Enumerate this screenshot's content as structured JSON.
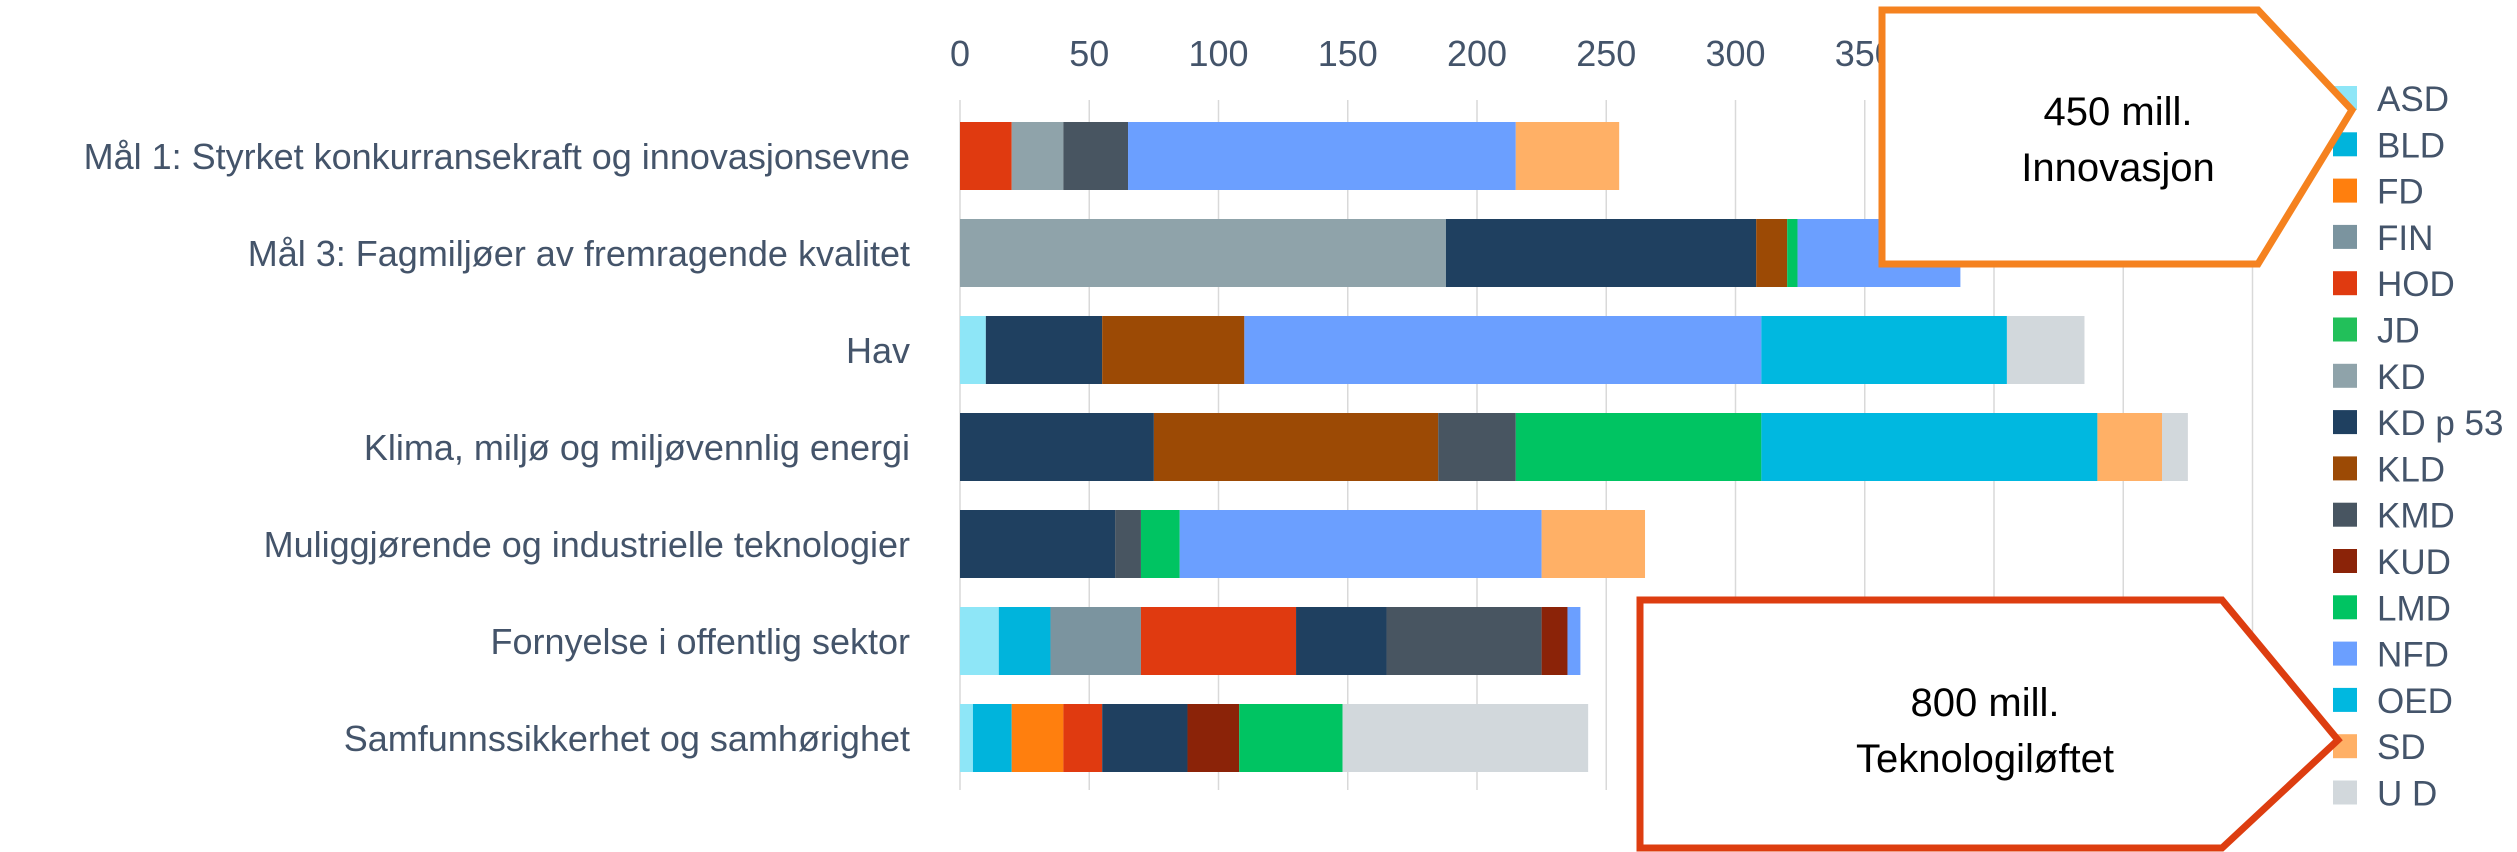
{
  "chart_data": {
    "type": "bar",
    "orientation": "horizontal",
    "stacked": true,
    "xlim": [
      0,
      500
    ],
    "x_ticks": [
      "0",
      "50",
      "100",
      "150",
      "200",
      "250",
      "300",
      "350"
    ],
    "grid": true,
    "legend_position": "right",
    "categories": [
      "Mål 1: Styrket konkurransekraft og innovasjonsevne",
      "Mål 3: Fagmiljøer av fremragende kvalitet",
      "Hav",
      "Klima, miljø og miljøvennlig energi",
      "Muliggjørende og industrielle teknologier",
      "Fornyelse i offentlig sektor",
      "Samfunnssikkerhet og samhørighet"
    ],
    "series": [
      {
        "name": "ASD",
        "color": "#8ee6f7",
        "values": [
          0,
          0,
          10,
          0,
          0,
          15,
          5
        ]
      },
      {
        "name": "BLD",
        "color": "#00b4dc",
        "values": [
          0,
          0,
          0,
          0,
          0,
          20,
          15
        ]
      },
      {
        "name": "FD",
        "color": "#ff7f0e",
        "values": [
          0,
          0,
          0,
          0,
          0,
          0,
          20
        ]
      },
      {
        "name": "FIN",
        "color": "#7b949f",
        "values": [
          0,
          0,
          0,
          0,
          0,
          35,
          0
        ]
      },
      {
        "name": "HOD",
        "color": "#e03a10",
        "values": [
          20,
          0,
          0,
          0,
          0,
          60,
          15
        ]
      },
      {
        "name": "JD",
        "color": "#22c05a",
        "values": [
          0,
          0,
          0,
          0,
          0,
          0,
          0
        ]
      },
      {
        "name": "KD",
        "color": "#8fa3aa",
        "values": [
          20,
          188,
          0,
          0,
          0,
          0,
          0
        ]
      },
      {
        "name": "KD p 53",
        "color": "#1f4060",
        "values": [
          0,
          120,
          45,
          75,
          60,
          35,
          33
        ]
      },
      {
        "name": "KLD",
        "color": "#9c4a05",
        "values": [
          0,
          12,
          55,
          110,
          0,
          0,
          0
        ]
      },
      {
        "name": "KMD",
        "color": "#485561",
        "values": [
          25,
          0,
          0,
          30,
          10,
          60,
          0
        ]
      },
      {
        "name": "KUD",
        "color": "#8b2308",
        "values": [
          0,
          0,
          0,
          0,
          0,
          10,
          20
        ]
      },
      {
        "name": "LMD",
        "color": "#00c462",
        "values": [
          0,
          4,
          0,
          95,
          15,
          0,
          40
        ]
      },
      {
        "name": "NFD",
        "color": "#6b9fff",
        "values": [
          150,
          63,
          200,
          0,
          140,
          5,
          0
        ]
      },
      {
        "name": "OED",
        "color": "#00b8e0",
        "values": [
          0,
          0,
          95,
          130,
          0,
          0,
          0
        ]
      },
      {
        "name": "SD",
        "color": "#ffb066",
        "values": [
          40,
          0,
          0,
          25,
          40,
          0,
          0
        ]
      },
      {
        "name": "U D",
        "color": "#d2d8dc",
        "values": [
          0,
          0,
          30,
          10,
          0,
          0,
          95
        ]
      }
    ]
  },
  "callouts": [
    {
      "line1": "450 mill.",
      "line2": "Innovasjon",
      "color": "#f5821f"
    },
    {
      "line1": "800 mill.",
      "line2": "Teknologiløftet",
      "color": "#dd3d10"
    }
  ]
}
